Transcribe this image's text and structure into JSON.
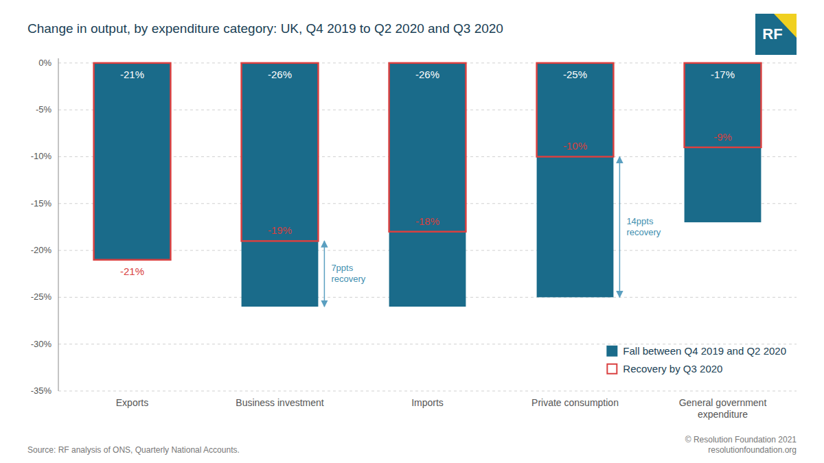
{
  "chart_data": {
    "type": "bar",
    "title": "Change in output, by expenditure category: UK, Q4 2019 to Q2 2020 and Q3 2020",
    "categories": [
      "Exports",
      "Business investment",
      "Imports",
      "Private consumption",
      "General government\nexpenditure"
    ],
    "series": [
      {
        "name": "Fall between Q4 2019 and Q2 2020",
        "color": "#1a6b8a",
        "values": [
          -21,
          -26,
          -26,
          -25,
          -17
        ],
        "value_labels": [
          "-21%",
          "-26%",
          "-26%",
          "-25%",
          "-17%"
        ]
      },
      {
        "name": "Recovery by Q3 2020",
        "color": "#d94040",
        "values": [
          -21,
          -19,
          -18,
          -10,
          -9
        ],
        "value_labels": [
          "-21%",
          "-19%",
          "-18%",
          "-10%",
          "-9%"
        ]
      }
    ],
    "data_labels": true,
    "annotations": [
      {
        "category": "Business investment",
        "text": "7ppts\nrecovery"
      },
      {
        "category": "Private consumption",
        "text": "14ppts\nrecovery"
      }
    ],
    "ylim": [
      -35,
      0.5
    ],
    "yticks": [
      {
        "value": 0,
        "label": "0%"
      },
      {
        "value": -5,
        "label": "-5%"
      },
      {
        "value": -10,
        "label": "-10%"
      },
      {
        "value": -15,
        "label": "-15%"
      },
      {
        "value": -20,
        "label": "-20%"
      },
      {
        "value": -25,
        "label": "-25%"
      },
      {
        "value": -30,
        "label": "-30%"
      },
      {
        "value": -35,
        "label": "-35%"
      }
    ],
    "grid": true,
    "legend": "lower right",
    "source": "Source: RF analysis of ONS, Quarterly National Accounts.",
    "credit": "© Resolution Foundation 2021\nresolutionfoundation.org",
    "logo": "RF"
  }
}
